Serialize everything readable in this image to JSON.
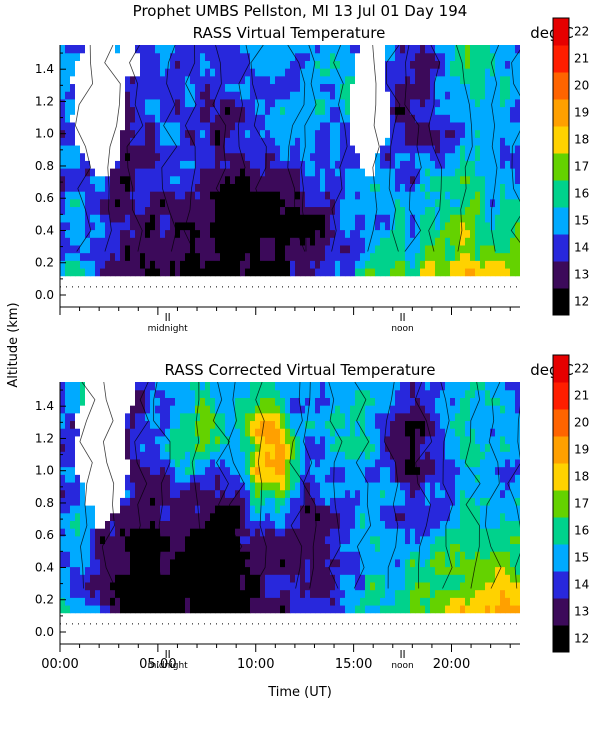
{
  "header": {
    "title": "Prophet  UMBS Pellston, MI  13 Jul 01 Day 194"
  },
  "ylabel": "Altitude (km)",
  "xlabel": "Time (UT)",
  "colors": {
    "c12": "#000000",
    "c13": "#3c0a5a",
    "c14": "#2828dc",
    "c15": "#00aaff",
    "c16": "#00d28c",
    "c17": "#64d200",
    "c18": "#ffd200",
    "c19": "#ffa000",
    "c20": "#ff6400",
    "c21": "#ff1e00",
    "c22": "#e60000"
  },
  "chart_data": [
    {
      "type": "heatmap",
      "title": "RASS Virtual Temperature",
      "unit_label": "deg C",
      "colorbar_ticks": [
        "12",
        "13",
        "14",
        "15",
        "16",
        "17",
        "18",
        "19",
        "20",
        "21",
        "22"
      ],
      "y_ticks": [
        "0.0",
        "0.2",
        "0.4",
        "0.6",
        "0.8",
        "1.0",
        "1.2",
        "1.4"
      ],
      "ylim": [
        0.0,
        1.55
      ],
      "xlim_hours": [
        0,
        23.5
      ],
      "annotations": [
        "midnight",
        "noon"
      ],
      "annotation_hours": [
        5.5,
        17.5
      ],
      "data_altitude_range_km": [
        0.12,
        1.55
      ],
      "trend": "cool (12-14 deg C) low-level layer near 00-08 UT, warming to 20-21 deg C near surface after 17 UT; mixed 14-17 deg C aloft with data gaps near 01-04 UT and 15-17 UT above 0.8 km"
    },
    {
      "type": "heatmap",
      "title": "RASS Corrected Virtual Temperature",
      "unit_label": "deg C",
      "colorbar_ticks": [
        "12",
        "13",
        "14",
        "15",
        "16",
        "17",
        "18",
        "19",
        "20",
        "21",
        "22"
      ],
      "y_ticks": [
        "0.0",
        "0.2",
        "0.4",
        "0.6",
        "0.8",
        "1.0",
        "1.2",
        "1.4"
      ],
      "x_ticks": [
        "00:00",
        "05:00",
        "10:00",
        "15:00",
        "20:00"
      ],
      "ylim": [
        0.0,
        1.55
      ],
      "xlim_hours": [
        0,
        23.5
      ],
      "annotations": [
        "midnight",
        "noon"
      ],
      "annotation_hours": [
        5.5,
        17.5
      ],
      "data_altitude_range_km": [
        0.12,
        1.55
      ],
      "trend": "cool 12-14 deg C near surface 00-12 UT, warm 18-21 deg C near surface after 16 UT; warm plume 17-20 deg C aloft near 09-12 UT at 0.8-1.4 km"
    }
  ]
}
